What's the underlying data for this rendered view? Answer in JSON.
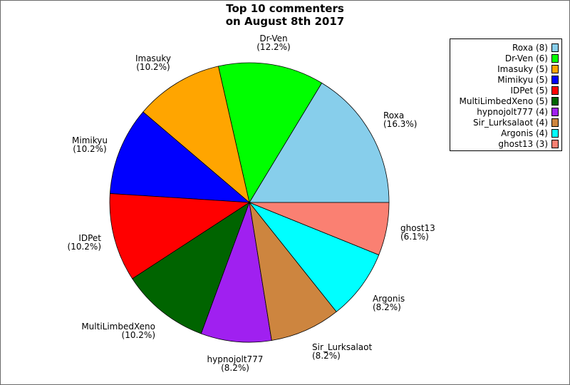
{
  "title_line1": "Top 10 commenters",
  "title_line2": "on August 8th 2017",
  "chart_data": {
    "type": "pie",
    "title": "Top 10 commenters on August 8th 2017",
    "legend_position": "top-right",
    "slices": [
      {
        "name": "Roxa",
        "count": 8,
        "percent": "16.3%",
        "color": "#87ceeb",
        "legend": "Roxa (8)"
      },
      {
        "name": "Dr-Ven",
        "count": 6,
        "percent": "12.2%",
        "color": "#00ff00",
        "legend": "Dr-Ven (6)"
      },
      {
        "name": "Imasuky",
        "count": 5,
        "percent": "10.2%",
        "color": "#ffa500",
        "legend": "Imasuky (5)"
      },
      {
        "name": "Mimikyu",
        "count": 5,
        "percent": "10.2%",
        "color": "#0000ff",
        "legend": "Mimikyu (5)"
      },
      {
        "name": "IDPet",
        "count": 5,
        "percent": "10.2%",
        "color": "#ff0000",
        "legend": "IDPet (5)"
      },
      {
        "name": "MultiLimbedXeno",
        "count": 5,
        "percent": "10.2%",
        "color": "#006400",
        "legend": "MultiLimbedXeno (5)"
      },
      {
        "name": "hypnojolt777",
        "count": 4,
        "percent": "8.2%",
        "color": "#a020f0",
        "legend": "hypnojolt777 (4)"
      },
      {
        "name": "Sir_Lurksalaot",
        "count": 4,
        "percent": "8.2%",
        "color": "#cd853f",
        "legend": "Sir_Lurksalaot (4)"
      },
      {
        "name": "Argonis",
        "count": 4,
        "percent": "8.2%",
        "color": "#00ffff",
        "legend": "Argonis (4)"
      },
      {
        "name": "ghost13",
        "count": 3,
        "percent": "6.1%",
        "color": "#fa8072",
        "legend": "ghost13 (3)"
      }
    ]
  }
}
